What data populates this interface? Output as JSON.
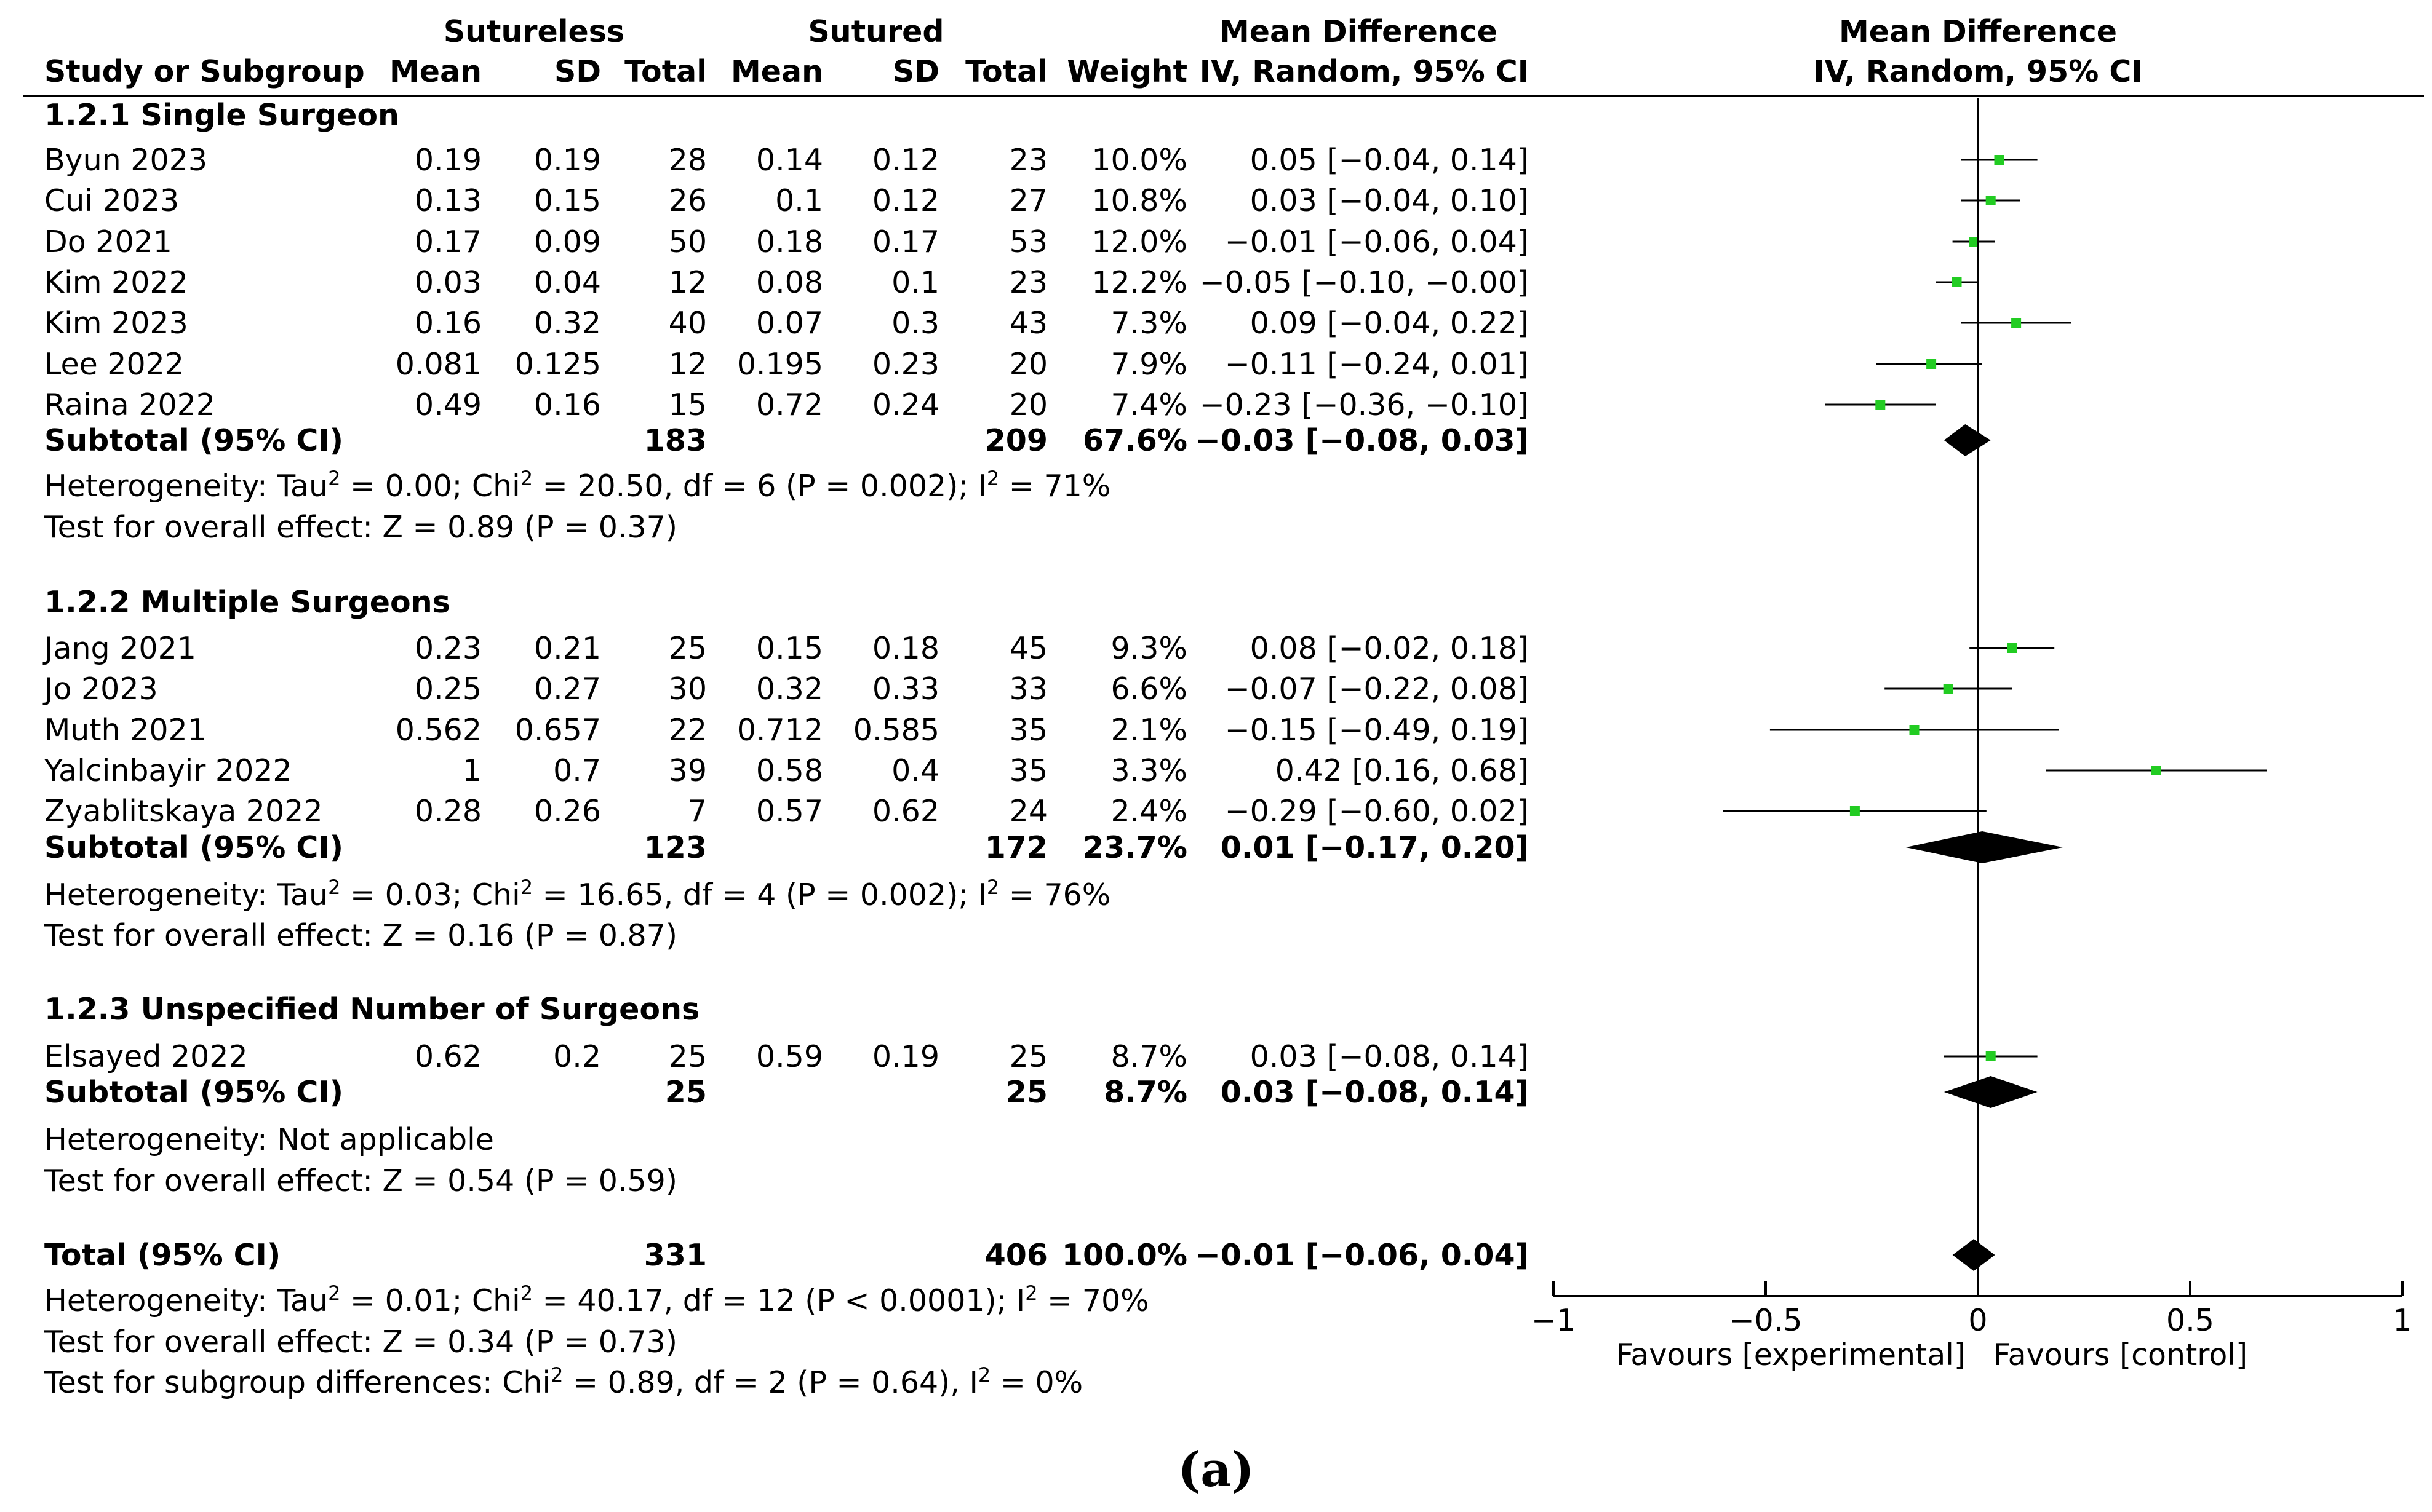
{
  "chart_data": {
    "type": "forest",
    "title": "",
    "group_headers": {
      "experimental": "Sutureless",
      "control": "Sutured",
      "effect": "Mean Difference",
      "plot": "Mean Difference"
    },
    "columns": {
      "study": "Study or Subgroup",
      "mean": "Mean",
      "sd": "SD",
      "total": "Total",
      "weight": "Weight",
      "ci": "IV, Random, 95% CI",
      "plot_ci": "IV, Random, 95% CI"
    },
    "axis": {
      "min": -1,
      "max": 1,
      "ticks": [
        -1,
        -0.5,
        0,
        0.5,
        1
      ],
      "tick_labels": [
        "−1",
        "−0.5",
        "0",
        "0.5",
        "1"
      ],
      "favours_left": "Favours [experimental]",
      "favours_right": "Favours [control]"
    },
    "subgroups": [
      {
        "title": "1.2.1 Single Surgeon",
        "studies": [
          {
            "name": "Byun 2023",
            "e_mean": "0.19",
            "e_sd": "0.19",
            "e_total": "28",
            "c_mean": "0.14",
            "c_sd": "0.12",
            "c_total": "23",
            "weight": "10.0%",
            "ci_text": "0.05 [−0.04, 0.14]",
            "md": 0.05,
            "lo": -0.04,
            "hi": 0.14
          },
          {
            "name": "Cui 2023",
            "e_mean": "0.13",
            "e_sd": "0.15",
            "e_total": "26",
            "c_mean": "0.1",
            "c_sd": "0.12",
            "c_total": "27",
            "weight": "10.8%",
            "ci_text": "0.03 [−0.04, 0.10]",
            "md": 0.03,
            "lo": -0.04,
            "hi": 0.1
          },
          {
            "name": "Do 2021",
            "e_mean": "0.17",
            "e_sd": "0.09",
            "e_total": "50",
            "c_mean": "0.18",
            "c_sd": "0.17",
            "c_total": "53",
            "weight": "12.0%",
            "ci_text": "−0.01 [−0.06, 0.04]",
            "md": -0.01,
            "lo": -0.06,
            "hi": 0.04
          },
          {
            "name": "Kim 2022",
            "e_mean": "0.03",
            "e_sd": "0.04",
            "e_total": "12",
            "c_mean": "0.08",
            "c_sd": "0.1",
            "c_total": "23",
            "weight": "12.2%",
            "ci_text": "−0.05 [−0.10, −0.00]",
            "md": -0.05,
            "lo": -0.1,
            "hi": 0.0
          },
          {
            "name": "Kim 2023",
            "e_mean": "0.16",
            "e_sd": "0.32",
            "e_total": "40",
            "c_mean": "0.07",
            "c_sd": "0.3",
            "c_total": "43",
            "weight": "7.3%",
            "ci_text": "0.09 [−0.04, 0.22]",
            "md": 0.09,
            "lo": -0.04,
            "hi": 0.22
          },
          {
            "name": "Lee 2022",
            "e_mean": "0.081",
            "e_sd": "0.125",
            "e_total": "12",
            "c_mean": "0.195",
            "c_sd": "0.23",
            "c_total": "20",
            "weight": "7.9%",
            "ci_text": "−0.11 [−0.24, 0.01]",
            "md": -0.11,
            "lo": -0.24,
            "hi": 0.01
          },
          {
            "name": "Raina 2022",
            "e_mean": "0.49",
            "e_sd": "0.16",
            "e_total": "15",
            "c_mean": "0.72",
            "c_sd": "0.24",
            "c_total": "20",
            "weight": "7.4%",
            "ci_text": "−0.23 [−0.36, −0.10]",
            "md": -0.23,
            "lo": -0.36,
            "hi": -0.1
          }
        ],
        "subtotal": {
          "label": "Subtotal (95% CI)",
          "e_total": "183",
          "c_total": "209",
          "weight": "67.6%",
          "ci_text": "−0.03 [−0.08, 0.03]",
          "md": -0.03,
          "lo": -0.08,
          "hi": 0.03
        },
        "heterogeneity": {
          "prefix": "Heterogeneity: Tau",
          "mid1": " = 0.00; Chi",
          "mid2": " = 20.50, df = 6 (P = 0.002); I",
          "end": " = 71%"
        },
        "overall": "Test for overall effect: Z = 0.89 (P = 0.37)"
      },
      {
        "title": "1.2.2 Multiple Surgeons",
        "studies": [
          {
            "name": "Jang 2021",
            "e_mean": "0.23",
            "e_sd": "0.21",
            "e_total": "25",
            "c_mean": "0.15",
            "c_sd": "0.18",
            "c_total": "45",
            "weight": "9.3%",
            "ci_text": "0.08 [−0.02, 0.18]",
            "md": 0.08,
            "lo": -0.02,
            "hi": 0.18
          },
          {
            "name": "Jo 2023",
            "e_mean": "0.25",
            "e_sd": "0.27",
            "e_total": "30",
            "c_mean": "0.32",
            "c_sd": "0.33",
            "c_total": "33",
            "weight": "6.6%",
            "ci_text": "−0.07 [−0.22, 0.08]",
            "md": -0.07,
            "lo": -0.22,
            "hi": 0.08
          },
          {
            "name": "Muth 2021",
            "e_mean": "0.562",
            "e_sd": "0.657",
            "e_total": "22",
            "c_mean": "0.712",
            "c_sd": "0.585",
            "c_total": "35",
            "weight": "2.1%",
            "ci_text": "−0.15 [−0.49, 0.19]",
            "md": -0.15,
            "lo": -0.49,
            "hi": 0.19
          },
          {
            "name": "Yalcinbayir 2022",
            "e_mean": "1",
            "e_sd": "0.7",
            "e_total": "39",
            "c_mean": "0.58",
            "c_sd": "0.4",
            "c_total": "35",
            "weight": "3.3%",
            "ci_text": "0.42 [0.16, 0.68]",
            "md": 0.42,
            "lo": 0.16,
            "hi": 0.68
          },
          {
            "name": "Zyablitskaya 2022",
            "e_mean": "0.28",
            "e_sd": "0.26",
            "e_total": "7",
            "c_mean": "0.57",
            "c_sd": "0.62",
            "c_total": "24",
            "weight": "2.4%",
            "ci_text": "−0.29 [−0.60, 0.02]",
            "md": -0.29,
            "lo": -0.6,
            "hi": 0.02
          }
        ],
        "subtotal": {
          "label": "Subtotal (95% CI)",
          "e_total": "123",
          "c_total": "172",
          "weight": "23.7%",
          "ci_text": "0.01 [−0.17, 0.20]",
          "md": 0.01,
          "lo": -0.17,
          "hi": 0.2
        },
        "heterogeneity": {
          "prefix": "Heterogeneity: Tau",
          "mid1": " = 0.03; Chi",
          "mid2": " = 16.65, df = 4 (P = 0.002); I",
          "end": " = 76%"
        },
        "overall": "Test for overall effect: Z = 0.16 (P = 0.87)"
      },
      {
        "title": "1.2.3 Unspecified Number of Surgeons",
        "studies": [
          {
            "name": "Elsayed 2022",
            "e_mean": "0.62",
            "e_sd": "0.2",
            "e_total": "25",
            "c_mean": "0.59",
            "c_sd": "0.19",
            "c_total": "25",
            "weight": "8.7%",
            "ci_text": "0.03 [−0.08, 0.14]",
            "md": 0.03,
            "lo": -0.08,
            "hi": 0.14
          }
        ],
        "subtotal": {
          "label": "Subtotal (95% CI)",
          "e_total": "25",
          "c_total": "25",
          "weight": "8.7%",
          "ci_text": "0.03 [−0.08, 0.14]",
          "md": 0.03,
          "lo": -0.08,
          "hi": 0.14
        },
        "heterogeneity_text": "Heterogeneity: Not applicable",
        "overall": "Test for overall effect: Z = 0.54 (P = 0.59)"
      }
    ],
    "total": {
      "label": "Total (95% CI)",
      "e_total": "331",
      "c_total": "406",
      "weight": "100.0%",
      "ci_text": "−0.01 [−0.06, 0.04]",
      "md": -0.01,
      "lo": -0.06,
      "hi": 0.04,
      "heterogeneity": {
        "prefix": "Heterogeneity: Tau",
        "mid1": " = 0.01; Chi",
        "mid2": " = 40.17, df = 12 (P < 0.0001); I",
        "end": " = 70%"
      },
      "overall": "Test for overall effect: Z = 0.34 (P = 0.73)",
      "subgroup_diff": {
        "prefix": "Test for subgroup differences: Chi",
        "mid": " = 0.89, df = 2 (P = 0.64), I",
        "end": " = 0%"
      }
    },
    "sup": "2",
    "caption": "(a)",
    "marker_color": "#22cc22"
  }
}
